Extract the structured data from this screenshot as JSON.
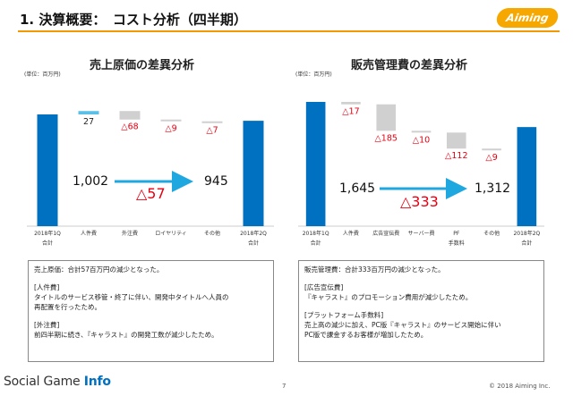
{
  "header": {
    "title": "1. 決算概要：　コスト分析（四半期）",
    "logo_text": "Aiming",
    "accent_color": "#f39800",
    "logo_color": "#f7a800"
  },
  "left_panel": {
    "heading": "売上原価の差異分析",
    "unit": "(単位：百万円)",
    "start_value": "1,002",
    "end_value": "945",
    "diff_value": "△57",
    "bar_labels": [
      "27",
      "△68",
      "△9",
      "△7"
    ],
    "categories": [
      {
        "line1": "2018年1Q",
        "line2": "合計"
      },
      {
        "line1": "人件費",
        "line2": ""
      },
      {
        "line1": "外注費",
        "line2": ""
      },
      {
        "line1": "ロイヤリティ",
        "line2": ""
      },
      {
        "line1": "その他",
        "line2": ""
      },
      {
        "line1": "2018年2Q",
        "line2": "合計"
      }
    ],
    "note": {
      "summary": "売上原価：合計57百万円の減少となった。",
      "sections": [
        {
          "heading": "[人件費]",
          "lines": [
            "タイトルのサービス移管・終了に伴い、開発中タイトルへ人員の",
            "再配置を行ったため。"
          ]
        },
        {
          "heading": "[外注費]",
          "lines": [
            "前四半期に続き、『キャラスト』の開発工数が減少したため。"
          ]
        }
      ]
    }
  },
  "right_panel": {
    "heading": "販売管理費の差異分析",
    "unit": "(単位：百万円)",
    "start_value": "1,645",
    "end_value": "1,312",
    "diff_value": "△333",
    "bar_labels": [
      "△17",
      "△185",
      "△10",
      "△112",
      "△9"
    ],
    "categories": [
      {
        "line1": "2018年1Q",
        "line2": "合計"
      },
      {
        "line1": "人件費",
        "line2": ""
      },
      {
        "line1": "広告宣伝費",
        "line2": ""
      },
      {
        "line1": "サーバー費",
        "line2": ""
      },
      {
        "line1": "PF",
        "line2": "手数料"
      },
      {
        "line1": "その他",
        "line2": ""
      },
      {
        "line1": "2018年2Q",
        "line2": "合計"
      }
    ],
    "note": {
      "summary": "販売管理費：合計333百万円の減少となった。",
      "sections": [
        {
          "heading": "[広告宣伝費]",
          "lines": [
            "『キャラスト』のプロモーション費用が減少したため。"
          ]
        },
        {
          "heading": "[プラットフォーム手数料]",
          "lines": [
            "売上高の減少に加え、PC版『キャラスト』のサービス開始に伴い",
            "PC版で課金するお客様が増加したため。"
          ]
        }
      ]
    }
  },
  "chart_data": [
    {
      "type": "bar",
      "title": "売上原価の差異分析",
      "ylabel": "(単位：百万円)",
      "categories": [
        "2018年1Q 合計",
        "人件費",
        "外注費",
        "ロイヤリティ",
        "その他",
        "2018年2Q 合計"
      ],
      "values": [
        1002,
        27,
        -68,
        -9,
        -7,
        945
      ],
      "kind": [
        "total",
        "delta",
        "delta",
        "delta",
        "delta",
        "total"
      ],
      "colors": {
        "total": "#0070c0",
        "increase": "#5bc0e8",
        "decrease": "#d0d0d0"
      }
    },
    {
      "type": "bar",
      "title": "販売管理費の差異分析",
      "ylabel": "(単位：百万円)",
      "categories": [
        "2018年1Q 合計",
        "人件費",
        "広告宣伝費",
        "サーバー費",
        "PF 手数料",
        "その他",
        "2018年2Q 合計"
      ],
      "values": [
        1645,
        -17,
        -185,
        -10,
        -112,
        -9,
        1312
      ],
      "kind": [
        "total",
        "delta",
        "delta",
        "delta",
        "delta",
        "delta",
        "total"
      ],
      "colors": {
        "total": "#0070c0",
        "increase": "#5bc0e8",
        "decrease": "#d0d0d0"
      }
    }
  ],
  "footer": {
    "brand_plain": "Social Game ",
    "brand_bold": "Info",
    "page_number": "7",
    "copyright": "© 2018 Aiming Inc."
  }
}
